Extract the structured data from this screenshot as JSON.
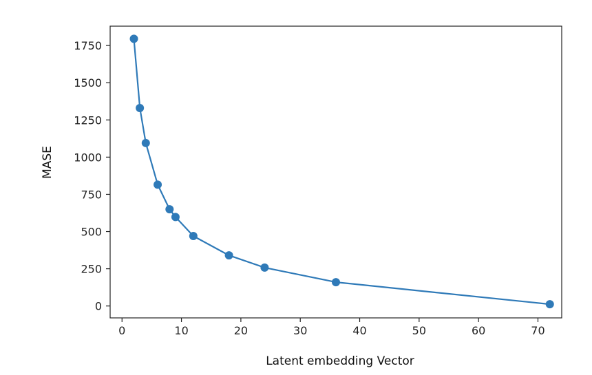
{
  "chart_data": {
    "type": "line",
    "title": "",
    "xlabel": "Latent embedding Vector",
    "ylabel": "MASE",
    "xlim": [
      -2,
      74
    ],
    "ylim": [
      -80,
      1880
    ],
    "xticks": [
      0,
      10,
      20,
      30,
      40,
      50,
      60,
      70
    ],
    "yticks": [
      0,
      250,
      500,
      750,
      1000,
      1250,
      1500,
      1750
    ],
    "grid": false,
    "series": [
      {
        "color": "#2f7ab8",
        "marker": "circle",
        "x": [
          2,
          3,
          4,
          6,
          8,
          9,
          12,
          18,
          24,
          36,
          72
        ],
        "y": [
          1795,
          1330,
          1095,
          815,
          650,
          598,
          470,
          340,
          258,
          160,
          12
        ]
      }
    ]
  }
}
